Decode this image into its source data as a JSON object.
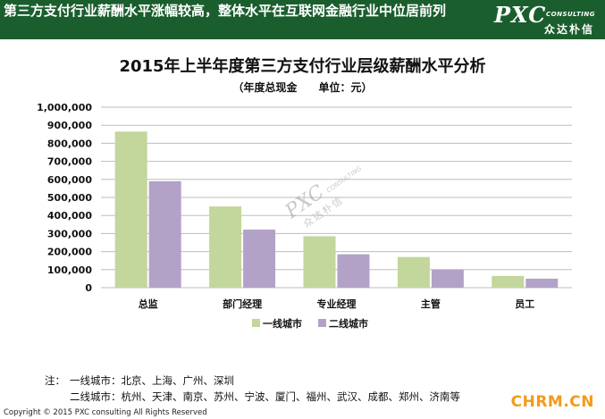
{
  "header": {
    "title": "第三方支付行业薪酬水平涨幅较高，整体水平在互联网金融行业中位居前列",
    "logo_main": "PXC",
    "logo_sub": "CONSULTING",
    "logo_cn": "众达朴信",
    "bg_color": "#1b5e2e"
  },
  "watermark": {
    "main": "PXC",
    "sub": "CONSULTING",
    "cn": "众达朴信"
  },
  "chart_data": {
    "type": "bar",
    "title": "2015年上半年度第三方支付行业层级薪酬水平分析",
    "subtitle": "（年度总现金　　单位：元）",
    "categories": [
      "总监",
      "部门经理",
      "专业经理",
      "主管",
      "员工"
    ],
    "series": [
      {
        "name": "一线城市",
        "values": [
          865000,
          450000,
          285000,
          170000,
          65000
        ],
        "color": "#c3d69b"
      },
      {
        "name": "二线城市",
        "values": [
          590000,
          322000,
          185000,
          100000,
          50000
        ],
        "color": "#b3a2c7"
      }
    ],
    "ylim": [
      0,
      1000000
    ],
    "yticks": [
      "0",
      "100,000",
      "200,000",
      "300,000",
      "400,000",
      "500,000",
      "600,000",
      "700,000",
      "800,000",
      "900,000",
      "1,000,000"
    ],
    "grid": true,
    "legend_position": "bottom"
  },
  "notes": {
    "label": "注：",
    "line1": "一线城市：北京、上海、广州、深圳",
    "line2": "二线城市：杭州、天津、南京、苏州、宁波、厦门、福州、武汉、成都、郑州、济南等"
  },
  "footer": {
    "copyright": "Copyright © 2015  PXC consulting All Rights Reserved",
    "site": "CHRM.CN"
  }
}
